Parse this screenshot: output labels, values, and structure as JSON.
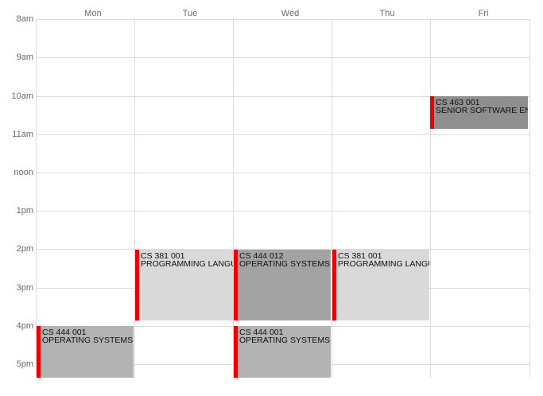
{
  "calendar": {
    "days": [
      "Mon",
      "Tue",
      "Wed",
      "Thu",
      "Fri"
    ],
    "times": [
      "8am",
      "9am",
      "10am",
      "11am",
      "noon",
      "1pm",
      "2pm",
      "3pm",
      "4pm",
      "5pm"
    ]
  },
  "events": [
    {
      "code": "CS 463 001",
      "title": "SENIOR SOFTWARE ENG",
      "color": "#8f8f8f"
    },
    {
      "code": "CS 381 001",
      "title": "PROGRAMMING LANGU",
      "color": "#d9d9d9"
    },
    {
      "code": "CS 444 012",
      "title": "OPERATING SYSTEMS II",
      "color": "#a3a3a3"
    },
    {
      "code": "CS 381 001",
      "title": "PROGRAMMING LANGU",
      "color": "#d9d9d9"
    },
    {
      "code": "CS 444 001",
      "title": "OPERATING SYSTEMS II",
      "color": "#b3b3b3"
    },
    {
      "code": "CS 444 001",
      "title": "OPERATING SYSTEMS II",
      "color": "#b3b3b3"
    }
  ],
  "colors": {
    "accent": "#ee0000",
    "grid": "#dcdcdc"
  }
}
